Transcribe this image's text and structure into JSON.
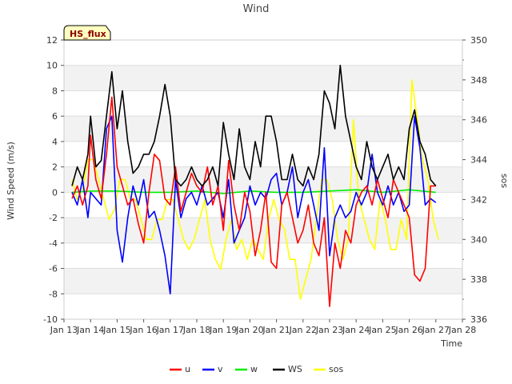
{
  "chart_data": {
    "type": "line",
    "title": "Wind",
    "xlabel": "Time",
    "ylabel": "Wind Speed (m/s)",
    "y2label": "sos",
    "badge": "HS_flux",
    "xlim": [
      13,
      28
    ],
    "ylim": [
      -10,
      12
    ],
    "y2lim": [
      336,
      350
    ],
    "x_ticks": [
      13,
      14,
      15,
      16,
      17,
      18,
      19,
      20,
      21,
      22,
      23,
      24,
      25,
      26,
      27,
      28
    ],
    "x_tick_labels": [
      "Jan 13",
      "Jan 14",
      "Jan 15",
      "Jan 16",
      "Jan 17",
      "Jan 18",
      "Jan 19",
      "Jan 20",
      "Jan 21",
      "Jan 22",
      "Jan 23",
      "Jan 24",
      "Jan 25",
      "Jan 26",
      "Jan 27",
      "Jan 28"
    ],
    "y_ticks": [
      -10,
      -8,
      -6,
      -4,
      -2,
      0,
      2,
      4,
      6,
      8,
      10,
      12
    ],
    "y_tick_labels": [
      "-10",
      "-8",
      "-6",
      "-4",
      "-2",
      "0",
      "2",
      "4",
      "6",
      "8",
      "10",
      "12"
    ],
    "y2_ticks": [
      336,
      338,
      340,
      342,
      344,
      346,
      348,
      350
    ],
    "y2_tick_labels": [
      "336",
      "338",
      "340",
      "342",
      "344",
      "346",
      "348",
      "350"
    ],
    "series": [
      {
        "name": "u",
        "axis": "left",
        "color": "#ff0000",
        "x": [
          13.3,
          13.5,
          13.7,
          13.9,
          14.0,
          14.2,
          14.4,
          14.6,
          14.8,
          15.0,
          15.2,
          15.4,
          15.6,
          15.8,
          16.0,
          16.2,
          16.4,
          16.6,
          16.8,
          17.0,
          17.2,
          17.4,
          17.6,
          17.8,
          18.0,
          18.2,
          18.4,
          18.6,
          18.8,
          19.0,
          19.2,
          19.4,
          19.6,
          19.8,
          20.0,
          20.2,
          20.4,
          20.6,
          20.8,
          21.0,
          21.2,
          21.4,
          21.6,
          21.8,
          22.0,
          22.2,
          22.4,
          22.6,
          22.8,
          23.0,
          23.2,
          23.4,
          23.6,
          23.8,
          24.0,
          24.2,
          24.4,
          24.6,
          24.8,
          25.0,
          25.2,
          25.4,
          25.6,
          25.8,
          26.0,
          26.2,
          26.4,
          26.6,
          26.8,
          27.0
        ],
        "y": [
          -0.5,
          0.5,
          -1,
          0.5,
          4.5,
          1,
          -0.5,
          3,
          7.5,
          2,
          0.5,
          -1,
          -0.5,
          -2.5,
          -4,
          0,
          3,
          2.5,
          -0.5,
          -1,
          2,
          -1.5,
          0,
          1.5,
          0.5,
          0,
          2,
          -1,
          0.5,
          -3,
          2.5,
          -1,
          -3,
          0,
          -1.5,
          -5,
          -3,
          0,
          -5.5,
          -6,
          -1,
          0,
          -2,
          -4,
          -3,
          -1,
          -4,
          -5,
          -2,
          -9,
          -4,
          -6,
          -3,
          -4,
          -1,
          0,
          0.5,
          -1,
          1,
          -0.5,
          -2,
          1,
          0,
          -1,
          -2,
          -6.5,
          -7,
          -6,
          0.5,
          0.5
        ]
      },
      {
        "name": "v",
        "axis": "left",
        "color": "#0000ff",
        "x": [
          13.3,
          13.5,
          13.7,
          13.9,
          14.0,
          14.2,
          14.4,
          14.6,
          14.8,
          15.0,
          15.2,
          15.4,
          15.6,
          15.8,
          16.0,
          16.2,
          16.4,
          16.6,
          16.8,
          17.0,
          17.2,
          17.4,
          17.6,
          17.8,
          18.0,
          18.2,
          18.4,
          18.6,
          18.8,
          19.0,
          19.2,
          19.4,
          19.6,
          19.8,
          20.0,
          20.2,
          20.4,
          20.6,
          20.8,
          21.0,
          21.2,
          21.4,
          21.6,
          21.8,
          22.0,
          22.2,
          22.4,
          22.6,
          22.8,
          23.0,
          23.2,
          23.4,
          23.6,
          23.8,
          24.0,
          24.2,
          24.4,
          24.6,
          24.8,
          25.0,
          25.2,
          25.4,
          25.6,
          25.8,
          26.0,
          26.2,
          26.4,
          26.6,
          26.8,
          27.0
        ],
        "y": [
          0,
          -1,
          1,
          -2,
          0,
          -0.5,
          -1,
          5,
          6,
          -3,
          -5.5,
          -2,
          0.5,
          -1,
          1,
          -2,
          -1.5,
          -3,
          -5,
          -8,
          1,
          -2,
          -0.5,
          0,
          -1,
          0.5,
          -1,
          -0.5,
          0,
          -2,
          1,
          -4,
          -3,
          -2,
          0.5,
          -1,
          0,
          -0.5,
          1,
          1.5,
          -1,
          0,
          2,
          -2,
          0,
          1,
          -1,
          -3,
          3.5,
          -5,
          -2,
          -1,
          -2,
          -1.5,
          0,
          -1,
          0,
          3,
          0,
          -1,
          0.5,
          -1,
          0,
          -1.5,
          -1,
          6,
          3.5,
          -1,
          -0.5,
          -0.8
        ]
      },
      {
        "name": "w",
        "axis": "left",
        "color": "#00ee00",
        "x": [
          13.3,
          14,
          15,
          16,
          17,
          18,
          19,
          20,
          21,
          22,
          23,
          24,
          25,
          26,
          27
        ],
        "y": [
          0,
          0.1,
          0.1,
          0,
          0,
          0.1,
          -0.1,
          0.1,
          0,
          0,
          0.1,
          0.2,
          0,
          0.2,
          0
        ]
      },
      {
        "name": "WS",
        "axis": "left",
        "color": "#000000",
        "x": [
          13.3,
          13.5,
          13.7,
          13.9,
          14.0,
          14.2,
          14.4,
          14.6,
          14.8,
          15.0,
          15.2,
          15.4,
          15.6,
          15.8,
          16.0,
          16.2,
          16.4,
          16.6,
          16.8,
          17.0,
          17.2,
          17.4,
          17.6,
          17.8,
          18.0,
          18.2,
          18.4,
          18.6,
          18.8,
          19.0,
          19.2,
          19.4,
          19.6,
          19.8,
          20.0,
          20.2,
          20.4,
          20.6,
          20.8,
          21.0,
          21.2,
          21.4,
          21.6,
          21.8,
          22.0,
          22.2,
          22.4,
          22.6,
          22.8,
          23.0,
          23.2,
          23.4,
          23.6,
          23.8,
          24.0,
          24.2,
          24.4,
          24.6,
          24.8,
          25.0,
          25.2,
          25.4,
          25.6,
          25.8,
          26.0,
          26.2,
          26.4,
          26.6,
          26.8,
          27.0
        ],
        "y": [
          0.5,
          2,
          1,
          3,
          6,
          2,
          2.5,
          6,
          9.5,
          5,
          8,
          4,
          1.5,
          2,
          3,
          3,
          4,
          6,
          8.5,
          6,
          1,
          0.5,
          1,
          2,
          1,
          0.5,
          1,
          2,
          0.5,
          5.5,
          3,
          1,
          5,
          2,
          1,
          4,
          2,
          6,
          6,
          4,
          1,
          1,
          3,
          1,
          0.5,
          2,
          1,
          3,
          8,
          7,
          5,
          10,
          6,
          4,
          2,
          1,
          4,
          2,
          1,
          2,
          3,
          1,
          2,
          1,
          5,
          6.5,
          4,
          3,
          1,
          0.5
        ]
      },
      {
        "name": "sos",
        "axis": "right",
        "color": "#ffff00",
        "x": [
          13.3,
          13.5,
          13.7,
          13.9,
          14.1,
          14.3,
          14.5,
          14.7,
          14.9,
          15.1,
          15.3,
          15.5,
          15.7,
          15.9,
          16.1,
          16.3,
          16.5,
          16.7,
          16.9,
          17.1,
          17.3,
          17.5,
          17.7,
          17.9,
          18.1,
          18.3,
          18.5,
          18.7,
          18.9,
          19.1,
          19.3,
          19.5,
          19.7,
          19.9,
          20.1,
          20.3,
          20.5,
          20.7,
          20.9,
          21.1,
          21.3,
          21.5,
          21.7,
          21.9,
          22.1,
          22.3,
          22.5,
          22.7,
          22.9,
          23.1,
          23.3,
          23.5,
          23.7,
          23.9,
          24.1,
          24.3,
          24.5,
          24.7,
          24.9,
          25.1,
          25.3,
          25.5,
          25.7,
          25.9,
          26.1,
          26.3,
          26.5,
          26.7,
          26.9,
          27.1
        ],
        "y": [
          343,
          342,
          342.5,
          344,
          344,
          343,
          342,
          341,
          341.5,
          343,
          343,
          342,
          342,
          341,
          340,
          340,
          341,
          341,
          342,
          342,
          341,
          340,
          339.5,
          340,
          341,
          342,
          340,
          339,
          338.5,
          340,
          341,
          339.5,
          340,
          339,
          340,
          339.5,
          339,
          341,
          342,
          341,
          340.5,
          339,
          339,
          337,
          338,
          339,
          341,
          343,
          343,
          342,
          340,
          339,
          340,
          346,
          342,
          341,
          340,
          339.5,
          342,
          341,
          339.5,
          339.5,
          341,
          340,
          348,
          346,
          344,
          343,
          341,
          340
        ]
      }
    ]
  }
}
